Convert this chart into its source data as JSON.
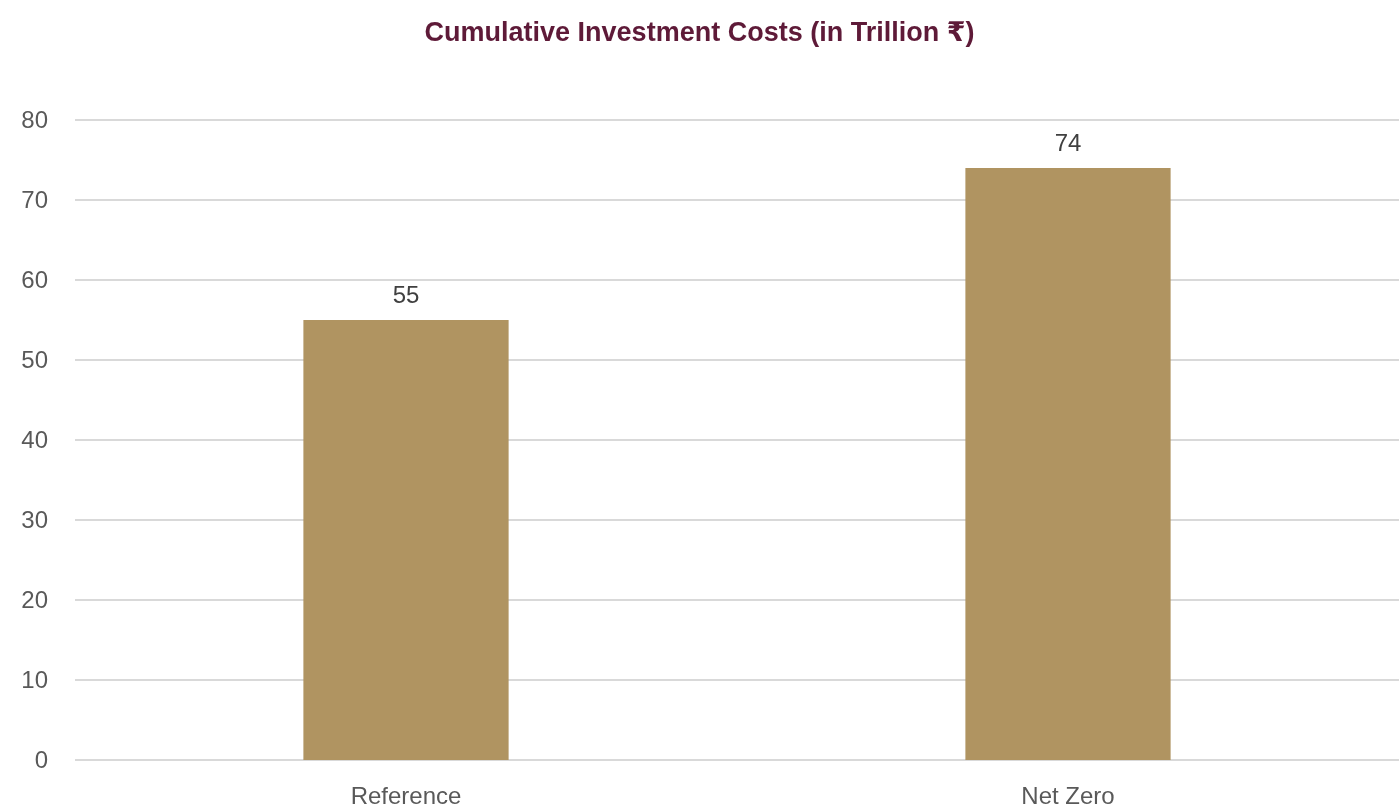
{
  "chart_data": {
    "type": "bar",
    "title": "Cumulative Investment Costs (in Trillion ₹)",
    "categories": [
      "Reference",
      "Net Zero"
    ],
    "values": [
      55,
      74
    ],
    "color": "#b09461",
    "ylim": [
      0,
      80
    ],
    "yticks": [
      0,
      10,
      20,
      30,
      40,
      50,
      60,
      70,
      80
    ],
    "grid": "y",
    "data_labels": true
  }
}
